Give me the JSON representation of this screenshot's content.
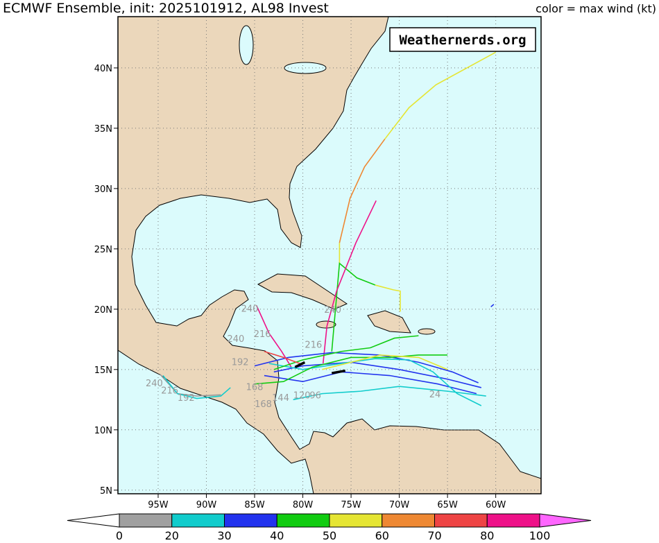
{
  "header": {
    "title": "ECMWF Ensemble, init: 2025101912, AL98 Invest",
    "legend_note": "color = max wind (kt)"
  },
  "watermark": "Weathernerds.org",
  "map": {
    "lon_range": [
      -99.17,
      -55.3
    ],
    "lat_range": [
      4.7,
      44.25
    ],
    "lon_ticks": [
      {
        "value": -95,
        "label": "95W"
      },
      {
        "value": -90,
        "label": "90W"
      },
      {
        "value": -85,
        "label": "85W"
      },
      {
        "value": -80,
        "label": "80W"
      },
      {
        "value": -75,
        "label": "75W"
      },
      {
        "value": -70,
        "label": "70W"
      },
      {
        "value": -65,
        "label": "65W"
      },
      {
        "value": -60,
        "label": "60W"
      }
    ],
    "lat_ticks": [
      {
        "value": 5,
        "label": "5N"
      },
      {
        "value": 10,
        "label": "10N"
      },
      {
        "value": 15,
        "label": "15N"
      },
      {
        "value": 20,
        "label": "20N"
      },
      {
        "value": 25,
        "label": "25N"
      },
      {
        "value": 30,
        "label": "30N"
      },
      {
        "value": 35,
        "label": "35N"
      },
      {
        "value": 40,
        "label": "40N"
      }
    ],
    "grid": true,
    "land_color": "#ebd7bb",
    "ocean_color": "#dbfbfc"
  },
  "tracks": [
    {
      "color": "#e5e533",
      "lon": [
        -76.2,
        -76.2
      ],
      "lat": [
        23.8,
        25.5
      ]
    },
    {
      "color": "#ee8833",
      "lon": [
        -76.2,
        -75.1,
        -73.6,
        -71.5
      ],
      "lat": [
        25.5,
        29.2,
        31.8,
        34.1
      ]
    },
    {
      "color": "#e5e533",
      "lon": [
        -71.5,
        -69.0,
        -66.2,
        -60.0
      ],
      "lat": [
        34.1,
        36.7,
        38.6,
        41.3
      ]
    },
    {
      "color": "#11cc11",
      "lon": [
        -77.0,
        -76.2,
        -74.4,
        -72.5
      ],
      "lat": [
        16.5,
        23.8,
        22.6,
        22.0
      ]
    },
    {
      "color": "#e5e533",
      "lon": [
        -72.5,
        -70.6,
        -69.9,
        -69.9
      ],
      "lat": [
        22.0,
        21.6,
        21.5,
        19.8
      ]
    },
    {
      "color": "#ee1188",
      "lon": [
        -77.9,
        -77.5,
        -76.5,
        -74.5,
        -72.4
      ],
      "lat": [
        15.5,
        18.6,
        21.5,
        25.5,
        29.0
      ]
    },
    {
      "color": "#ee1188",
      "lon": [
        -84.8,
        -83.5,
        -82.2,
        -81.2
      ],
      "lat": [
        20.3,
        18.0,
        16.5,
        15.2
      ]
    },
    {
      "color": "#2233ee",
      "lon": [
        -61.5,
        -65.0,
        -70.0,
        -75.0,
        -80.0,
        -83.0
      ],
      "lat": [
        13.5,
        14.2,
        15.0,
        15.6,
        15.3,
        14.8
      ]
    },
    {
      "color": "#2233ee",
      "lon": [
        -62.0,
        -66.0,
        -71.0,
        -76.0,
        -80.0,
        -84.0
      ],
      "lat": [
        13.0,
        13.8,
        14.5,
        14.8,
        14.0,
        14.5
      ]
    },
    {
      "color": "#2233ee",
      "lon": [
        -61.8,
        -64.5,
        -68.0,
        -72.0,
        -77.0,
        -81.5,
        -85.0
      ],
      "lat": [
        13.9,
        14.8,
        15.6,
        16.2,
        16.4,
        16.0,
        15.3
      ]
    },
    {
      "color": "#11cccc",
      "lon": [
        -61.0,
        -65.0,
        -70.0,
        -74.0,
        -78.0,
        -81.0
      ],
      "lat": [
        12.8,
        13.2,
        13.6,
        13.2,
        13.0,
        12.5
      ]
    },
    {
      "color": "#11cccc",
      "lon": [
        -61.5,
        -64.0,
        -66.5,
        -69.0,
        -72.5,
        -76.0,
        -80.0,
        -83.5
      ],
      "lat": [
        12.0,
        13.0,
        14.8,
        15.8,
        15.9,
        15.5,
        15.0,
        15.5
      ]
    },
    {
      "color": "#11cc11",
      "lon": [
        -65.0,
        -68.0,
        -71.0,
        -75.0,
        -79.0,
        -82.0,
        -85.0
      ],
      "lat": [
        16.2,
        16.2,
        16.0,
        16.0,
        15.2,
        14.0,
        13.8
      ]
    },
    {
      "color": "#11cc11",
      "lon": [
        -68.0,
        -70.5,
        -73.0,
        -76.0,
        -80.0,
        -83.0
      ],
      "lat": [
        17.8,
        17.6,
        16.8,
        16.5,
        15.8,
        15.0
      ]
    },
    {
      "color": "#e5e533",
      "lon": [
        -65.0,
        -68.0,
        -72.0,
        -75.0,
        -78.0
      ],
      "lat": [
        15.0,
        16.0,
        16.2,
        15.6,
        15.0
      ]
    },
    {
      "color": "#ee4444",
      "lon": [
        -84.0,
        -82.0,
        -80.0
      ],
      "lat": [
        16.5,
        16.0,
        15.4
      ]
    },
    {
      "color": "#999999",
      "lon": [
        -94.8,
        -93.0,
        -91.0,
        -88.5
      ],
      "lat": [
        14.6,
        13.0,
        12.8,
        12.9
      ]
    },
    {
      "color": "#11cccc",
      "lon": [
        -94.5,
        -93.0,
        -91.0,
        -88.5,
        -87.5
      ],
      "lat": [
        14.5,
        13.0,
        12.6,
        12.8,
        13.5
      ]
    },
    {
      "color": "#2233ee",
      "lon": [
        -60.5,
        -60.2
      ],
      "lat": [
        20.2,
        20.4
      ]
    },
    {
      "color": "#000000",
      "lon": [
        -80.8,
        -79.8
      ],
      "lat": [
        15.2,
        15.6
      ]
    },
    {
      "color": "#000000",
      "lon": [
        -77.0,
        -75.6
      ],
      "lat": [
        14.7,
        14.9
      ]
    }
  ],
  "hour_labels": [
    {
      "text": "240",
      "lon": -85.5,
      "lat": 19.8
    },
    {
      "text": "240",
      "lon": -76.9,
      "lat": 19.7
    },
    {
      "text": "216",
      "lon": -84.2,
      "lat": 17.7
    },
    {
      "text": "240",
      "lon": -86.95,
      "lat": 17.3
    },
    {
      "text": "192",
      "lon": -86.5,
      "lat": 15.35
    },
    {
      "text": "168",
      "lon": -85.0,
      "lat": 13.3
    },
    {
      "text": "168",
      "lon": -84.1,
      "lat": 11.9
    },
    {
      "text": "144",
      "lon": -82.3,
      "lat": 12.4
    },
    {
      "text": "120",
      "lon": -80.1,
      "lat": 12.6
    },
    {
      "text": "96",
      "lon": -78.7,
      "lat": 12.6
    },
    {
      "text": "216",
      "lon": -78.9,
      "lat": 16.8
    },
    {
      "text": "24",
      "lon": -66.3,
      "lat": 12.7
    },
    {
      "text": "240",
      "lon": -95.4,
      "lat": 13.6
    },
    {
      "text": "216",
      "lon": -93.8,
      "lat": 13.0
    },
    {
      "text": "192",
      "lon": -92.1,
      "lat": 12.4
    }
  ],
  "colorbar": {
    "levels": [
      0,
      20,
      30,
      40,
      50,
      60,
      70,
      80,
      100
    ],
    "colors": [
      "#a0a0a0",
      "#11cccc",
      "#2233ee",
      "#11cc11",
      "#e5e533",
      "#ee8833",
      "#ee4444",
      "#ee1188"
    ],
    "under_color": "#ffffff",
    "over_color": "#ff66ff"
  }
}
